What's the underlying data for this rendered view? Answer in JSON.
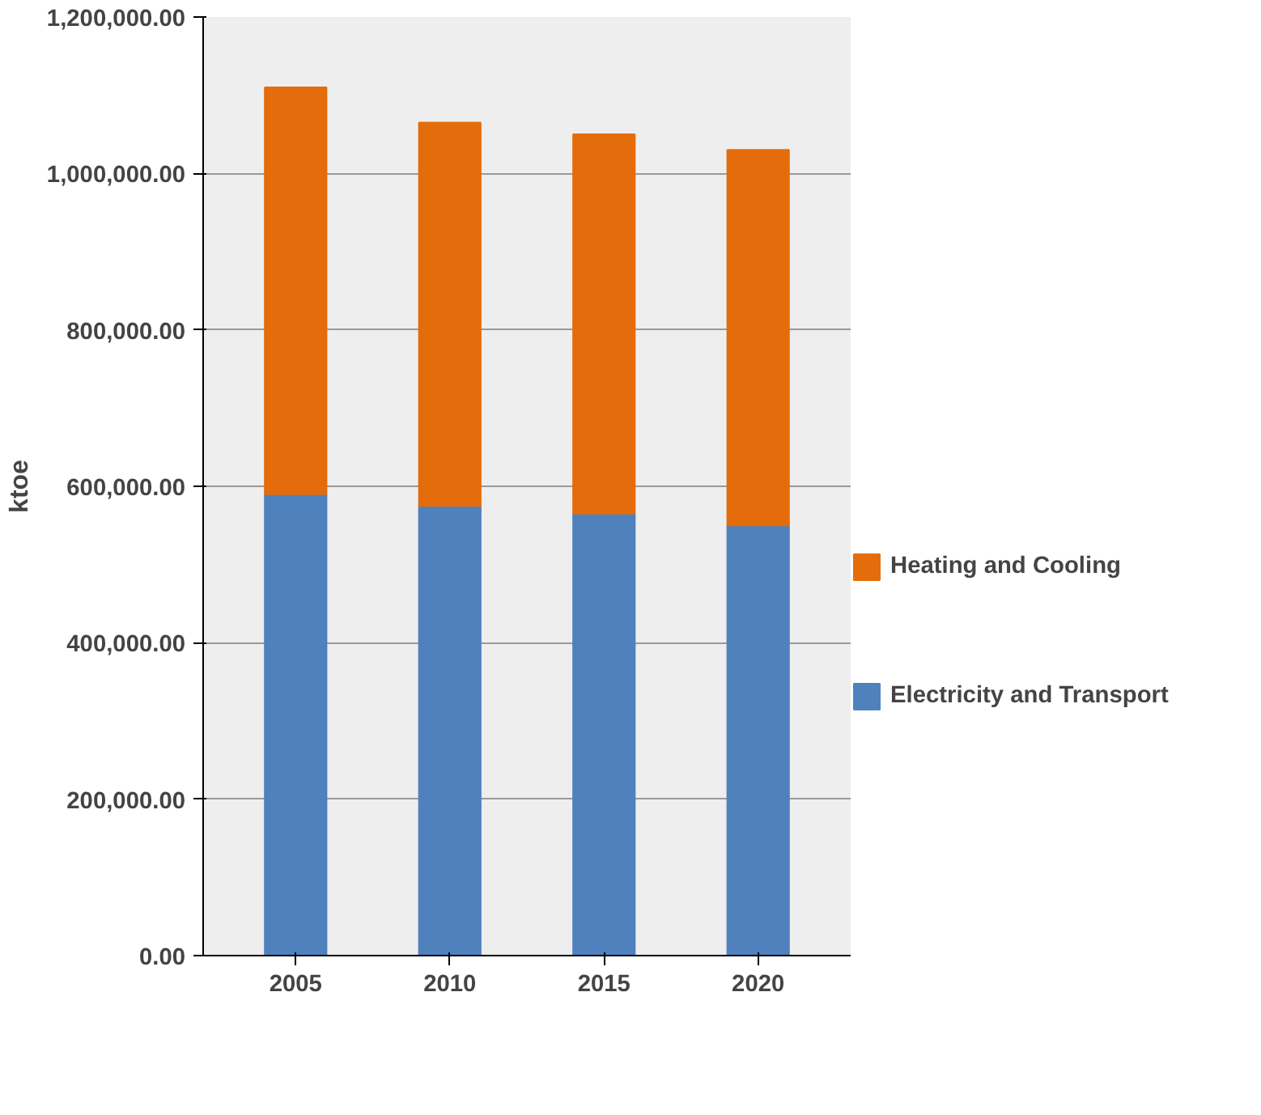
{
  "chart_data": {
    "type": "bar",
    "stacked": true,
    "ylabel": "ktoe",
    "categories": [
      "2005",
      "2010",
      "2015",
      "2020"
    ],
    "series": [
      {
        "name": "Electricity and Transport",
        "color": "#4f81bd",
        "values": [
          590000,
          575000,
          565000,
          550000
        ]
      },
      {
        "name": "Heating and Cooling",
        "color": "#e46c0a",
        "values": [
          520000,
          490000,
          485000,
          480000
        ]
      }
    ],
    "ylim": [
      0,
      1200000
    ],
    "yticks": [
      {
        "value": 0,
        "label": "0.00"
      },
      {
        "value": 200000,
        "label": "200,000.00"
      },
      {
        "value": 400000,
        "label": "400,000.00"
      },
      {
        "value": 600000,
        "label": "600,000.00"
      },
      {
        "value": 800000,
        "label": "800,000.00"
      },
      {
        "value": 1000000,
        "label": "1,000,000.00"
      },
      {
        "value": 1200000,
        "label": "1,200,000.00"
      }
    ],
    "grid": "y",
    "legend": "right"
  }
}
